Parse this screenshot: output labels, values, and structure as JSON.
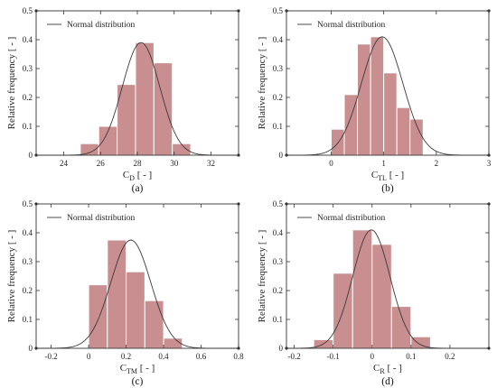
{
  "chart_data": [
    {
      "type": "bar",
      "panel_label": "(a)",
      "xlabel": "C",
      "xlabel_sub": "D",
      "xlabel_unit": " [ - ]",
      "ylabel": "Relative frequency  [ - ]",
      "legend": "Normal distribution",
      "xlim": [
        22.5,
        33.5
      ],
      "ylim": [
        0,
        0.5
      ],
      "xticks": [
        "24",
        "26",
        "28",
        "30",
        "32"
      ],
      "xtick_values": [
        24,
        26,
        28,
        30,
        32
      ],
      "yticks": [
        "0",
        "0.1",
        "0.2",
        "0.3",
        "0.4",
        "0.5"
      ],
      "ytick_values": [
        0,
        0.1,
        0.2,
        0.3,
        0.4,
        0.5
      ],
      "bins": [
        [
          24.9,
          25.9
        ],
        [
          25.9,
          26.9
        ],
        [
          26.9,
          27.9
        ],
        [
          27.9,
          28.9
        ],
        [
          28.9,
          29.9
        ],
        [
          29.9,
          30.9
        ]
      ],
      "values": [
        0.04,
        0.1,
        0.245,
        0.39,
        0.32,
        0.04
      ],
      "normal": {
        "mean": 28.2,
        "std": 1.02
      }
    },
    {
      "type": "bar",
      "panel_label": "(b)",
      "xlabel": "C",
      "xlabel_sub": "TL",
      "xlabel_unit": " [ - ]",
      "ylabel": "Relative frequency  [ - ]",
      "legend": "Normal distribution",
      "xlim": [
        -0.85,
        3.0
      ],
      "ylim": [
        0,
        0.5
      ],
      "xticks": [
        "0",
        "1",
        "2",
        "3"
      ],
      "xtick_values": [
        0,
        1,
        2,
        3
      ],
      "yticks": [
        "0",
        "0.1",
        "0.2",
        "0.3",
        "0.4",
        "0.5"
      ],
      "ytick_values": [
        0,
        0.1,
        0.2,
        0.3,
        0.4,
        0.5
      ],
      "bins": [
        [
          0.0,
          0.25
        ],
        [
          0.25,
          0.5
        ],
        [
          0.5,
          0.75
        ],
        [
          0.75,
          1.0
        ],
        [
          1.0,
          1.25
        ],
        [
          1.25,
          1.5
        ],
        [
          1.5,
          1.75
        ],
        [
          1.75,
          2.0
        ]
      ],
      "values": [
        0.09,
        0.21,
        0.385,
        0.41,
        0.285,
        0.165,
        0.125,
        0.0
      ],
      "bins_visible": 8,
      "normal": {
        "mean": 0.97,
        "std": 0.395
      }
    },
    {
      "type": "bar",
      "panel_label": "(c)",
      "xlabel": "C",
      "xlabel_sub": "TM",
      "xlabel_unit": " [ - ]",
      "ylabel": "Relative frequency  [ - ]",
      "legend": "Normal distribution",
      "xlim": [
        -0.28,
        0.8
      ],
      "ylim": [
        0,
        0.5
      ],
      "xticks": [
        "-0.2",
        "0",
        "0.2",
        "0.4",
        "0.6",
        "0.8"
      ],
      "xtick_values": [
        -0.2,
        0,
        0.2,
        0.4,
        0.6,
        0.8
      ],
      "yticks": [
        "0",
        "0.1",
        "0.2",
        "0.3",
        "0.4",
        "0.5"
      ],
      "ytick_values": [
        0,
        0.1,
        0.2,
        0.3,
        0.4,
        0.5
      ],
      "bins": [
        [
          0.0,
          0.1
        ],
        [
          0.1,
          0.2
        ],
        [
          0.2,
          0.3
        ],
        [
          0.3,
          0.4
        ],
        [
          0.4,
          0.5
        ],
        [
          0.5,
          0.6
        ]
      ],
      "values": [
        0.0,
        0.22,
        0.375,
        0.265,
        0.165,
        0.035
      ],
      "bars_override": [
        [
          0.0,
          0.1,
          0.22
        ],
        [
          0.1,
          0.2,
          0.375
        ],
        [
          0.2,
          0.3,
          0.265
        ],
        [
          0.3,
          0.4,
          0.165
        ],
        [
          0.4,
          0.5,
          0.035
        ]
      ],
      "normal": {
        "mean": 0.225,
        "std": 0.107
      }
    },
    {
      "type": "bar",
      "panel_label": "(d)",
      "xlabel": "C",
      "xlabel_sub": "R",
      "xlabel_unit": " [ - ]",
      "ylabel": "Relative frequency  [ - ]",
      "legend": "Normal distribution",
      "xlim": [
        -0.22,
        0.3
      ],
      "ylim": [
        0,
        0.5
      ],
      "xticks": [
        "-0.2",
        "-0.1",
        "0",
        "0.1",
        "0.2"
      ],
      "xtick_values": [
        -0.2,
        -0.1,
        0,
        0.1,
        0.2
      ],
      "yticks": [
        "0",
        "0.1",
        "0.2",
        "0.3",
        "0.4",
        "0.5"
      ],
      "ytick_values": [
        0,
        0.1,
        0.2,
        0.3,
        0.4,
        0.5
      ],
      "bins": [
        [
          -0.15,
          -0.1
        ],
        [
          -0.1,
          -0.05
        ],
        [
          -0.05,
          0.0
        ],
        [
          0.0,
          0.05
        ],
        [
          0.05,
          0.1
        ],
        [
          0.1,
          0.15
        ]
      ],
      "values": [
        0.03,
        0.26,
        0.41,
        0.36,
        0.145,
        0.04
      ],
      "normal": {
        "mean": -0.002,
        "std": 0.048
      }
    }
  ]
}
